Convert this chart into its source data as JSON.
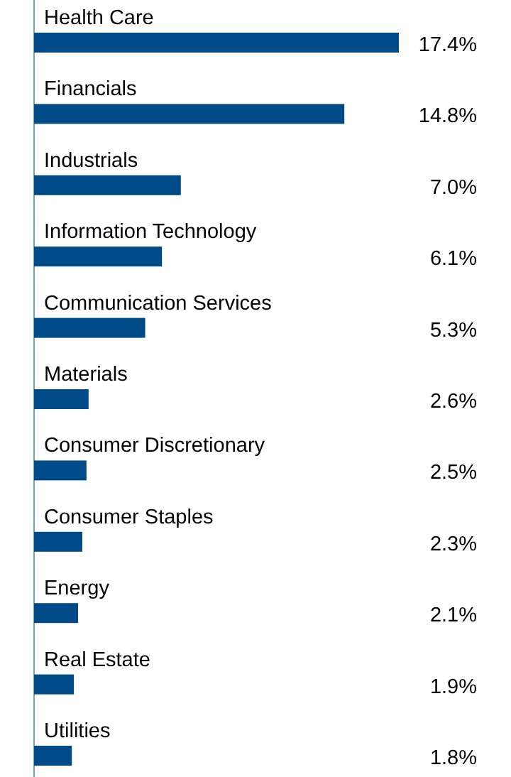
{
  "chart_data": {
    "type": "bar",
    "orientation": "horizontal",
    "categories": [
      "Health Care",
      "Financials",
      "Industrials",
      "Information Technology",
      "Communication Services",
      "Materials",
      "Consumer Discretionary",
      "Consumer Staples",
      "Energy",
      "Real Estate",
      "Utilities"
    ],
    "values": [
      17.4,
      14.8,
      7.0,
      6.1,
      5.3,
      2.6,
      2.5,
      2.3,
      2.1,
      1.9,
      1.8
    ],
    "value_labels": [
      "17.4%",
      "14.8%",
      "7.0%",
      "6.1%",
      "5.3%",
      "2.6%",
      "2.5%",
      "2.3%",
      "2.1%",
      "1.9%",
      "1.8%"
    ],
    "color": "#004b87"
  }
}
